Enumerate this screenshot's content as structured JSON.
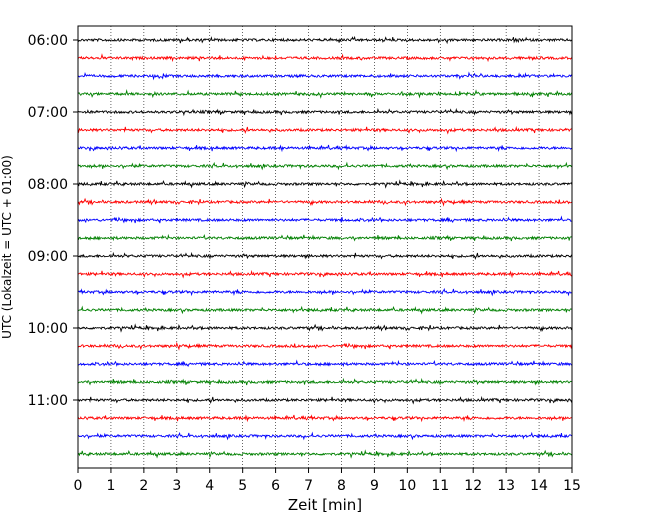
{
  "chart_data": {
    "type": "line",
    "title": "",
    "xlabel": "Zeit  [min]",
    "ylabel": "UTC (Lokalzeit = UTC + 01:00)",
    "xlim": [
      0,
      15
    ],
    "x_ticks": [
      0,
      1,
      2,
      3,
      4,
      5,
      6,
      7,
      8,
      9,
      10,
      11,
      12,
      13,
      14,
      15
    ],
    "x_tick_labels": [
      "0",
      "1",
      "2",
      "3",
      "4",
      "5",
      "6",
      "7",
      "8",
      "9",
      "10",
      "11",
      "12",
      "13",
      "14",
      "15"
    ],
    "y_tick_labels": [
      "06:00",
      "07:00",
      "08:00",
      "09:00",
      "10:00",
      "11:00"
    ],
    "trace_start_times": [
      "06:00",
      "06:15",
      "06:30",
      "06:45",
      "07:00",
      "07:15",
      "07:30",
      "07:45",
      "08:00",
      "08:15",
      "08:30",
      "08:45",
      "09:00",
      "09:15",
      "09:30",
      "09:45",
      "10:00",
      "10:15",
      "10:30",
      "10:45",
      "11:00",
      "11:15",
      "11:30",
      "11:45"
    ],
    "trace_colors": [
      "#000000",
      "#ff0000",
      "#0000ff",
      "#008000"
    ],
    "trace_duration_min": 15,
    "grid": "vertical dotted lines at each minute",
    "legend": "none"
  }
}
